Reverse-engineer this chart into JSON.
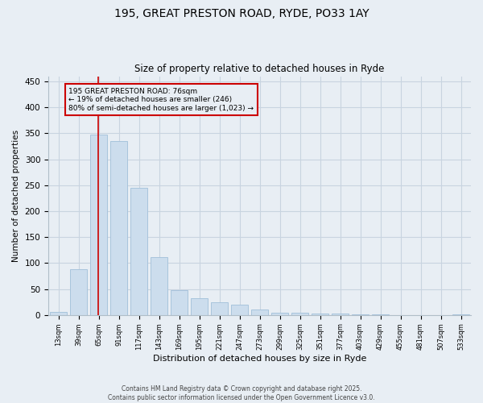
{
  "title_line1": "195, GREAT PRESTON ROAD, RYDE, PO33 1AY",
  "title_line2": "Size of property relative to detached houses in Ryde",
  "xlabel": "Distribution of detached houses by size in Ryde",
  "ylabel": "Number of detached properties",
  "categories": [
    "13sqm",
    "39sqm",
    "65sqm",
    "91sqm",
    "117sqm",
    "143sqm",
    "169sqm",
    "195sqm",
    "221sqm",
    "247sqm",
    "273sqm",
    "299sqm",
    "325sqm",
    "351sqm",
    "377sqm",
    "403sqm",
    "429sqm",
    "455sqm",
    "481sqm",
    "507sqm",
    "533sqm"
  ],
  "values": [
    6,
    88,
    348,
    335,
    245,
    112,
    48,
    32,
    25,
    20,
    10,
    5,
    4,
    3,
    2,
    1,
    1,
    0,
    0,
    0,
    1
  ],
  "bar_color": "#ccdded",
  "bar_edge_color": "#a8c4dc",
  "grid_color": "#c8d4e0",
  "bg_color": "#e8eef4",
  "vline_color": "#cc0000",
  "vline_x": 1.97,
  "annotation_text": "195 GREAT PRESTON ROAD: 76sqm\n← 19% of detached houses are smaller (246)\n80% of semi-detached houses are larger (1,023) →",
  "annotation_box_color": "#cc0000",
  "footer_line1": "Contains HM Land Registry data © Crown copyright and database right 2025.",
  "footer_line2": "Contains public sector information licensed under the Open Government Licence v3.0.",
  "ylim": [
    0,
    460
  ],
  "yticks": [
    0,
    50,
    100,
    150,
    200,
    250,
    300,
    350,
    400,
    450
  ]
}
